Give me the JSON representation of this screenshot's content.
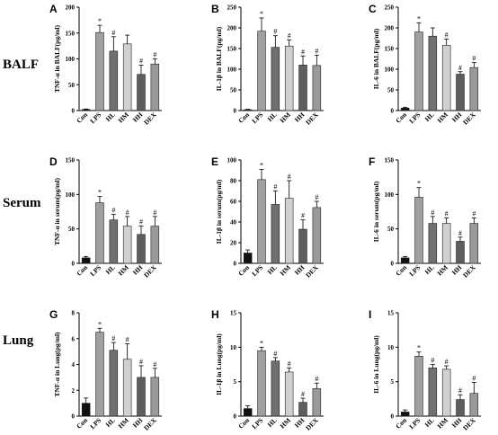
{
  "rows": [
    {
      "label": "BALF"
    },
    {
      "label": "Serum"
    },
    {
      "label": "Lung"
    }
  ],
  "categories": [
    "Con",
    "LPS",
    "HL",
    "HM",
    "HH",
    "DEX"
  ],
  "bar_colors": [
    "#111111",
    "#a0a0a0",
    "#707070",
    "#d0d0d0",
    "#5e5e5e",
    "#9a9a9a"
  ],
  "chart_data": [
    {
      "type": "bar",
      "panel": "A",
      "ylabel": "TNF-α in BALF(pg/ml)",
      "ylim": [
        0,
        200
      ],
      "yticks": [
        0,
        50,
        100,
        150,
        200
      ],
      "categories": [
        "Con",
        "LPS",
        "HL",
        "HM",
        "HH",
        "DEX"
      ],
      "values": [
        2,
        151,
        115,
        129,
        70,
        90
      ],
      "errors": [
        1,
        14,
        28,
        17,
        18,
        10
      ],
      "marks": [
        "",
        "*",
        "#",
        "",
        "#",
        "#"
      ]
    },
    {
      "type": "bar",
      "panel": "B",
      "ylabel": "IL-1β in BALF(pg/ml)",
      "ylim": [
        0,
        250
      ],
      "yticks": [
        0,
        50,
        100,
        150,
        200,
        250
      ],
      "categories": [
        "Con",
        "LPS",
        "HL",
        "HM",
        "HH",
        "DEX"
      ],
      "values": [
        2,
        192,
        153,
        156,
        110,
        109
      ],
      "errors": [
        1,
        32,
        28,
        15,
        22,
        25
      ],
      "marks": [
        "",
        "*",
        "#",
        "#",
        "#",
        "#"
      ]
    },
    {
      "type": "bar",
      "panel": "C",
      "ylabel": "IL-6 in BALF(pg/ml)",
      "ylim": [
        0,
        250
      ],
      "yticks": [
        0,
        50,
        100,
        150,
        200,
        250
      ],
      "categories": [
        "Con",
        "LPS",
        "HL",
        "HM",
        "HH",
        "DEX"
      ],
      "values": [
        6,
        190,
        180,
        158,
        88,
        104
      ],
      "errors": [
        2,
        22,
        20,
        15,
        6,
        12
      ],
      "marks": [
        "",
        "*",
        "",
        "#",
        "#",
        "#"
      ]
    },
    {
      "type": "bar",
      "panel": "D",
      "ylabel": "TNF-α in serum(pg/ml)",
      "ylim": [
        0,
        150
      ],
      "yticks": [
        0,
        50,
        100,
        150
      ],
      "categories": [
        "Con",
        "LPS",
        "HL",
        "HM",
        "HH",
        "DEX"
      ],
      "values": [
        8,
        88,
        63,
        54,
        42,
        54
      ],
      "errors": [
        2,
        9,
        8,
        14,
        12,
        14
      ],
      "marks": [
        "",
        "*",
        "#",
        "#",
        "#",
        "#"
      ]
    },
    {
      "type": "bar",
      "panel": "E",
      "ylabel": "IL-1β in serum(pg/ml)",
      "ylim": [
        0,
        100
      ],
      "yticks": [
        0,
        20,
        40,
        60,
        80,
        100
      ],
      "categories": [
        "Con",
        "LPS",
        "HL",
        "HM",
        "HH",
        "DEX"
      ],
      "values": [
        10,
        81,
        57,
        63,
        33,
        54
      ],
      "errors": [
        3,
        10,
        13,
        17,
        9,
        6
      ],
      "marks": [
        "",
        "*",
        "#",
        "#",
        "#",
        "#"
      ]
    },
    {
      "type": "bar",
      "panel": "F",
      "ylabel": "IL-6 in serum(pg/ml)",
      "ylim": [
        0,
        150
      ],
      "yticks": [
        0,
        50,
        100,
        150
      ],
      "categories": [
        "Con",
        "LPS",
        "HL",
        "HM",
        "HH",
        "DEX"
      ],
      "values": [
        8,
        96,
        58,
        58,
        32,
        58
      ],
      "errors": [
        2,
        14,
        10,
        8,
        6,
        8
      ],
      "marks": [
        "",
        "*",
        "#",
        "#",
        "#",
        "#"
      ]
    },
    {
      "type": "bar",
      "panel": "G",
      "ylabel": "TNF-α in Lung(pg/ml)",
      "ylim": [
        0,
        8
      ],
      "yticks": [
        0,
        2,
        4,
        6,
        8
      ],
      "categories": [
        "Con",
        "LPS",
        "HL",
        "HM",
        "HH",
        "DEX"
      ],
      "values": [
        1.0,
        6.5,
        5.1,
        4.4,
        3.0,
        3.0
      ],
      "errors": [
        0.4,
        0.3,
        0.6,
        1.2,
        0.9,
        0.7
      ],
      "marks": [
        "",
        "*",
        "#",
        "#",
        "#",
        "#"
      ]
    },
    {
      "type": "bar",
      "panel": "H",
      "ylabel": "IL-1β in Lung(pg/ml)",
      "ylim": [
        0,
        15
      ],
      "yticks": [
        0,
        5,
        10,
        15
      ],
      "categories": [
        "Con",
        "LPS",
        "HL",
        "HM",
        "HH",
        "DEX"
      ],
      "values": [
        1.1,
        9.5,
        8.0,
        6.4,
        2.0,
        4.0
      ],
      "errors": [
        0.4,
        0.5,
        0.5,
        0.6,
        0.6,
        0.8
      ],
      "marks": [
        "",
        "*",
        "#",
        "#",
        "#",
        "#"
      ]
    },
    {
      "type": "bar",
      "panel": "I",
      "ylabel": "IL-6 in Lung(pg/ml)",
      "ylim": [
        0,
        15
      ],
      "yticks": [
        0,
        5,
        10,
        15
      ],
      "categories": [
        "Con",
        "LPS",
        "HL",
        "HM",
        "HH",
        "DEX"
      ],
      "values": [
        0.6,
        8.7,
        7.0,
        6.8,
        2.4,
        3.3
      ],
      "errors": [
        0.3,
        0.6,
        0.5,
        0.5,
        0.7,
        1.6
      ],
      "marks": [
        "",
        "*",
        "#",
        "#",
        "#",
        "#"
      ]
    }
  ]
}
